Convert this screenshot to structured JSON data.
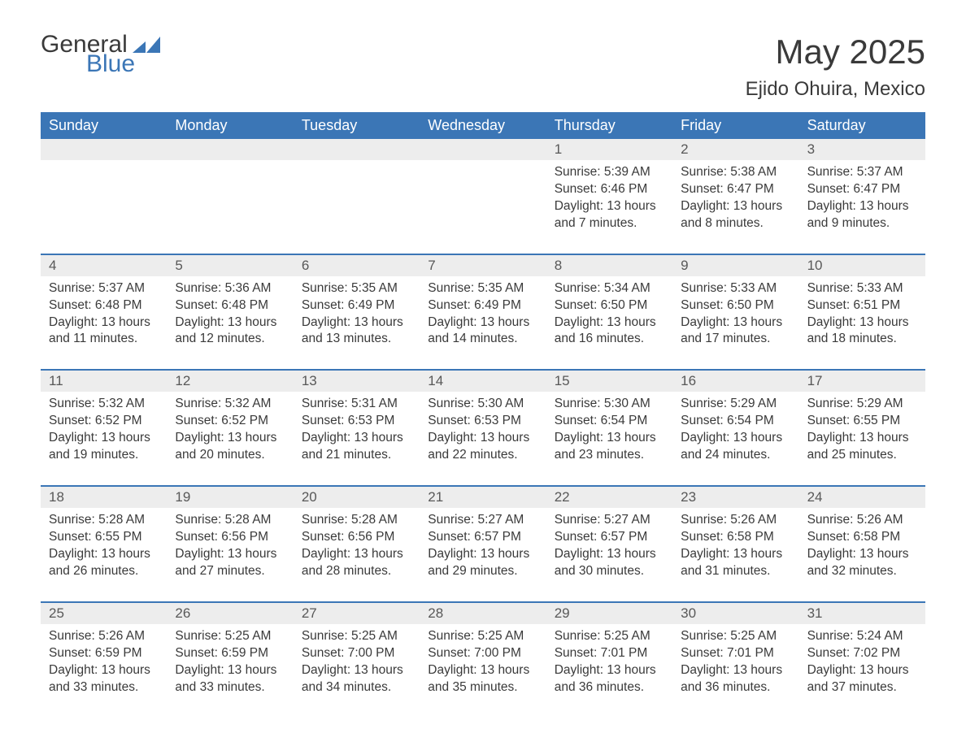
{
  "logo": {
    "word1": "General",
    "word2": "Blue"
  },
  "title": "May 2025",
  "location": "Ejido Ohuira, Mexico",
  "colors": {
    "header_bg": "#3b76b6",
    "header_text": "#ffffff",
    "daynum_bg": "#ededed",
    "week_divider": "#3b76b6",
    "logo_accent": "#3b76b6",
    "body_text": "#3a3a3a"
  },
  "day_headers": [
    "Sunday",
    "Monday",
    "Tuesday",
    "Wednesday",
    "Thursday",
    "Friday",
    "Saturday"
  ],
  "weeks": [
    [
      {
        "num": "",
        "lines": []
      },
      {
        "num": "",
        "lines": []
      },
      {
        "num": "",
        "lines": []
      },
      {
        "num": "",
        "lines": []
      },
      {
        "num": "1",
        "lines": [
          "Sunrise: 5:39 AM",
          "Sunset: 6:46 PM",
          "Daylight: 13 hours and 7 minutes."
        ]
      },
      {
        "num": "2",
        "lines": [
          "Sunrise: 5:38 AM",
          "Sunset: 6:47 PM",
          "Daylight: 13 hours and 8 minutes."
        ]
      },
      {
        "num": "3",
        "lines": [
          "Sunrise: 5:37 AM",
          "Sunset: 6:47 PM",
          "Daylight: 13 hours and 9 minutes."
        ]
      }
    ],
    [
      {
        "num": "4",
        "lines": [
          "Sunrise: 5:37 AM",
          "Sunset: 6:48 PM",
          "Daylight: 13 hours and 11 minutes."
        ]
      },
      {
        "num": "5",
        "lines": [
          "Sunrise: 5:36 AM",
          "Sunset: 6:48 PM",
          "Daylight: 13 hours and 12 minutes."
        ]
      },
      {
        "num": "6",
        "lines": [
          "Sunrise: 5:35 AM",
          "Sunset: 6:49 PM",
          "Daylight: 13 hours and 13 minutes."
        ]
      },
      {
        "num": "7",
        "lines": [
          "Sunrise: 5:35 AM",
          "Sunset: 6:49 PM",
          "Daylight: 13 hours and 14 minutes."
        ]
      },
      {
        "num": "8",
        "lines": [
          "Sunrise: 5:34 AM",
          "Sunset: 6:50 PM",
          "Daylight: 13 hours and 16 minutes."
        ]
      },
      {
        "num": "9",
        "lines": [
          "Sunrise: 5:33 AM",
          "Sunset: 6:50 PM",
          "Daylight: 13 hours and 17 minutes."
        ]
      },
      {
        "num": "10",
        "lines": [
          "Sunrise: 5:33 AM",
          "Sunset: 6:51 PM",
          "Daylight: 13 hours and 18 minutes."
        ]
      }
    ],
    [
      {
        "num": "11",
        "lines": [
          "Sunrise: 5:32 AM",
          "Sunset: 6:52 PM",
          "Daylight: 13 hours and 19 minutes."
        ]
      },
      {
        "num": "12",
        "lines": [
          "Sunrise: 5:32 AM",
          "Sunset: 6:52 PM",
          "Daylight: 13 hours and 20 minutes."
        ]
      },
      {
        "num": "13",
        "lines": [
          "Sunrise: 5:31 AM",
          "Sunset: 6:53 PM",
          "Daylight: 13 hours and 21 minutes."
        ]
      },
      {
        "num": "14",
        "lines": [
          "Sunrise: 5:30 AM",
          "Sunset: 6:53 PM",
          "Daylight: 13 hours and 22 minutes."
        ]
      },
      {
        "num": "15",
        "lines": [
          "Sunrise: 5:30 AM",
          "Sunset: 6:54 PM",
          "Daylight: 13 hours and 23 minutes."
        ]
      },
      {
        "num": "16",
        "lines": [
          "Sunrise: 5:29 AM",
          "Sunset: 6:54 PM",
          "Daylight: 13 hours and 24 minutes."
        ]
      },
      {
        "num": "17",
        "lines": [
          "Sunrise: 5:29 AM",
          "Sunset: 6:55 PM",
          "Daylight: 13 hours and 25 minutes."
        ]
      }
    ],
    [
      {
        "num": "18",
        "lines": [
          "Sunrise: 5:28 AM",
          "Sunset: 6:55 PM",
          "Daylight: 13 hours and 26 minutes."
        ]
      },
      {
        "num": "19",
        "lines": [
          "Sunrise: 5:28 AM",
          "Sunset: 6:56 PM",
          "Daylight: 13 hours and 27 minutes."
        ]
      },
      {
        "num": "20",
        "lines": [
          "Sunrise: 5:28 AM",
          "Sunset: 6:56 PM",
          "Daylight: 13 hours and 28 minutes."
        ]
      },
      {
        "num": "21",
        "lines": [
          "Sunrise: 5:27 AM",
          "Sunset: 6:57 PM",
          "Daylight: 13 hours and 29 minutes."
        ]
      },
      {
        "num": "22",
        "lines": [
          "Sunrise: 5:27 AM",
          "Sunset: 6:57 PM",
          "Daylight: 13 hours and 30 minutes."
        ]
      },
      {
        "num": "23",
        "lines": [
          "Sunrise: 5:26 AM",
          "Sunset: 6:58 PM",
          "Daylight: 13 hours and 31 minutes."
        ]
      },
      {
        "num": "24",
        "lines": [
          "Sunrise: 5:26 AM",
          "Sunset: 6:58 PM",
          "Daylight: 13 hours and 32 minutes."
        ]
      }
    ],
    [
      {
        "num": "25",
        "lines": [
          "Sunrise: 5:26 AM",
          "Sunset: 6:59 PM",
          "Daylight: 13 hours and 33 minutes."
        ]
      },
      {
        "num": "26",
        "lines": [
          "Sunrise: 5:25 AM",
          "Sunset: 6:59 PM",
          "Daylight: 13 hours and 33 minutes."
        ]
      },
      {
        "num": "27",
        "lines": [
          "Sunrise: 5:25 AM",
          "Sunset: 7:00 PM",
          "Daylight: 13 hours and 34 minutes."
        ]
      },
      {
        "num": "28",
        "lines": [
          "Sunrise: 5:25 AM",
          "Sunset: 7:00 PM",
          "Daylight: 13 hours and 35 minutes."
        ]
      },
      {
        "num": "29",
        "lines": [
          "Sunrise: 5:25 AM",
          "Sunset: 7:01 PM",
          "Daylight: 13 hours and 36 minutes."
        ]
      },
      {
        "num": "30",
        "lines": [
          "Sunrise: 5:25 AM",
          "Sunset: 7:01 PM",
          "Daylight: 13 hours and 36 minutes."
        ]
      },
      {
        "num": "31",
        "lines": [
          "Sunrise: 5:24 AM",
          "Sunset: 7:02 PM",
          "Daylight: 13 hours and 37 minutes."
        ]
      }
    ]
  ]
}
